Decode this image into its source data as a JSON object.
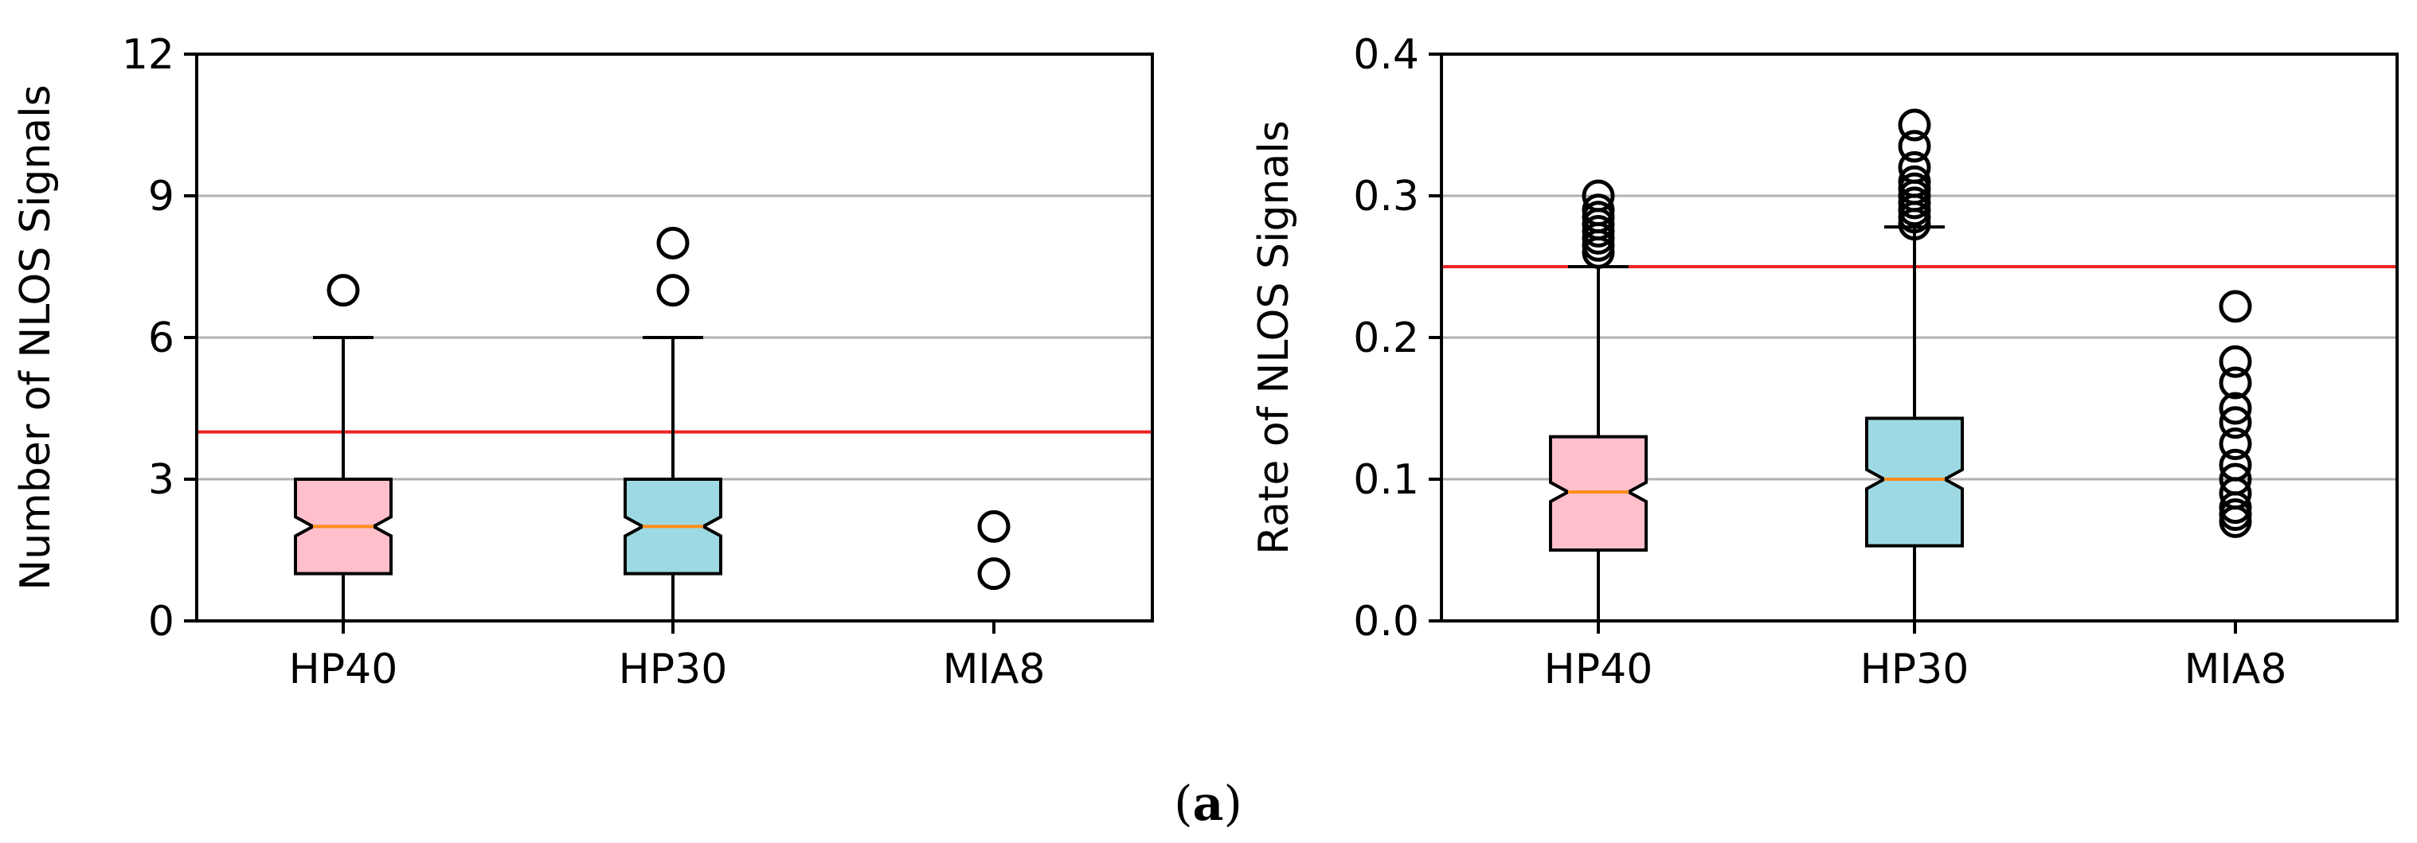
{
  "caption": {
    "open": "(",
    "letter": "a",
    "close": ")"
  },
  "colors": {
    "hp40": "#ffc0cb",
    "hp30": "#9dd9e2",
    "median": "#ff8c1a",
    "threshold": "#ee2222",
    "grid": "#b0b0b0",
    "axis": "#000000"
  },
  "chart_data": [
    {
      "type": "box",
      "ylabel": "Number of NLOS Signals",
      "xlabel": "",
      "categories": [
        "HP40",
        "HP30",
        "MIA8"
      ],
      "ylim": [
        0,
        12
      ],
      "yticks": [
        0,
        3,
        6,
        9,
        12
      ],
      "ytick_labels": [
        "0",
        "3",
        "6",
        "9",
        "12"
      ],
      "grid": "horizontal",
      "threshold": 4,
      "notched": true,
      "boxes": [
        {
          "name": "HP40",
          "whisker_low": 0,
          "q1": 1,
          "median": 2,
          "q3": 3,
          "whisker_high": 6,
          "outliers": [
            7
          ],
          "color": "#ffc0cb"
        },
        {
          "name": "HP30",
          "whisker_low": 0,
          "q1": 1,
          "median": 2,
          "q3": 3,
          "whisker_high": 6,
          "outliers": [
            7,
            8
          ],
          "color": "#9dd9e2"
        },
        {
          "name": "MIA8",
          "whisker_low": 0,
          "q1": 0,
          "median": 0,
          "q3": 0,
          "whisker_high": 0,
          "outliers": [
            1,
            2
          ],
          "color": "#ffffff"
        }
      ]
    },
    {
      "type": "box",
      "ylabel": "Rate of NLOS Signals",
      "xlabel": "",
      "categories": [
        "HP40",
        "HP30",
        "MIA8"
      ],
      "ylim": [
        0,
        0.4
      ],
      "yticks": [
        0,
        0.1,
        0.2,
        0.3,
        0.4
      ],
      "ytick_labels": [
        "0.0",
        "0.1",
        "0.2",
        "0.3",
        "0.4"
      ],
      "grid": "horizontal",
      "threshold": 0.25,
      "notched": true,
      "boxes": [
        {
          "name": "HP40",
          "whisker_low": 0,
          "q1": 0.05,
          "median": 0.091,
          "q3": 0.13,
          "whisker_high": 0.25,
          "outliers": [
            0.26,
            0.265,
            0.27,
            0.275,
            0.28,
            0.285,
            0.29,
            0.3
          ],
          "color": "#ffc0cb"
        },
        {
          "name": "HP30",
          "whisker_low": 0,
          "q1": 0.053,
          "median": 0.1,
          "q3": 0.143,
          "whisker_high": 0.278,
          "outliers": [
            0.28,
            0.285,
            0.29,
            0.295,
            0.3,
            0.305,
            0.31,
            0.32,
            0.335,
            0.35
          ],
          "color": "#9dd9e2"
        },
        {
          "name": "MIA8",
          "whisker_low": 0,
          "q1": 0,
          "median": 0,
          "q3": 0,
          "whisker_high": 0,
          "outliers": [
            0.07,
            0.075,
            0.08,
            0.09,
            0.1,
            0.11,
            0.125,
            0.14,
            0.15,
            0.168,
            0.183,
            0.222
          ],
          "color": "#ffffff"
        }
      ]
    }
  ]
}
